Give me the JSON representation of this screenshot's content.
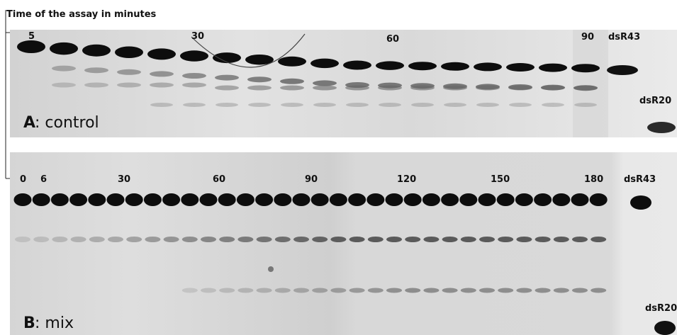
{
  "caption": "Time of the assay in minutes",
  "panel_a": {
    "letter": "A",
    "rest": ": control",
    "time_labels": [
      "5",
      "30",
      "60",
      "90"
    ],
    "marker_labels": [
      "dsR43",
      "dsR20"
    ]
  },
  "panel_b": {
    "letter": "B",
    "rest": ": mix",
    "time_labels": [
      "0",
      "6",
      "30",
      "60",
      "90",
      "120",
      "150",
      "180"
    ],
    "marker_labels": [
      "dsR43",
      "dsR20"
    ]
  },
  "colors": {
    "gel": "#dcdcdc",
    "gel_dark": "#c9c9c9",
    "band": "#0d0d0d",
    "faint_band": "#6a6a6a",
    "text": "#111111"
  }
}
